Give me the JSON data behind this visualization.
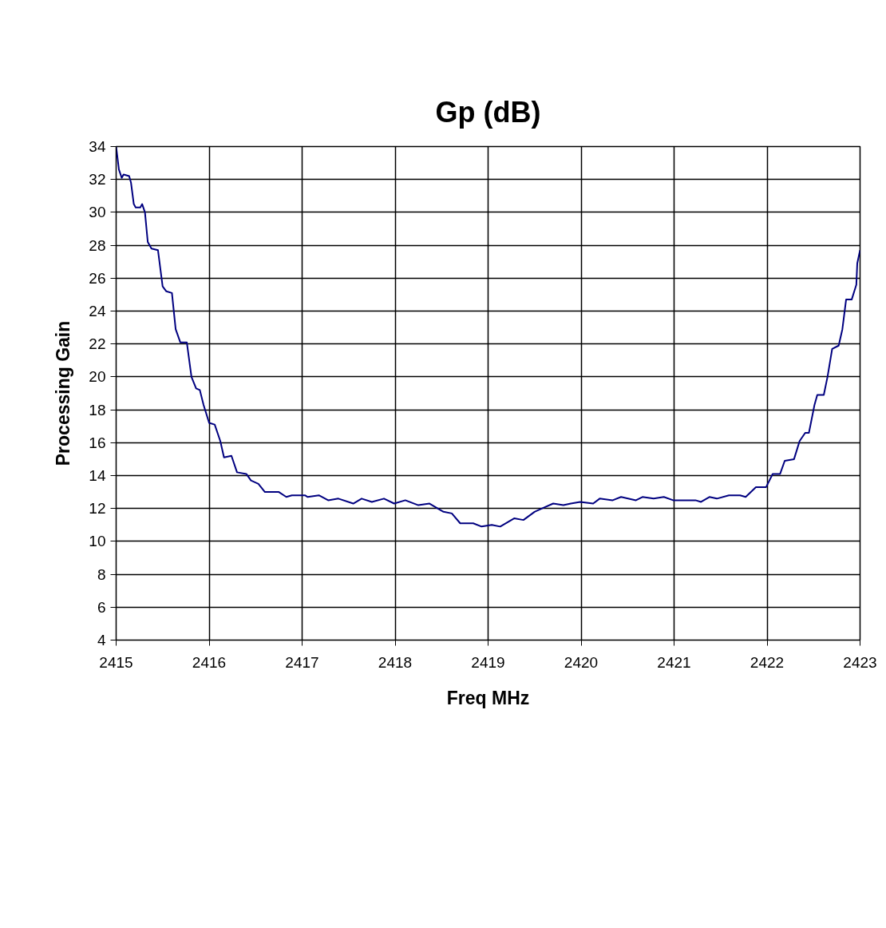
{
  "chart_data": {
    "type": "line",
    "title": "Gp (dB)",
    "xlabel": "Freq MHz",
    "ylabel": "Processing Gain",
    "xlim": [
      2415,
      2423
    ],
    "xticks": [
      2415,
      2416,
      2417,
      2418,
      2419,
      2420,
      2421,
      2422,
      2423
    ],
    "ylim": [
      4,
      34
    ],
    "yticks": [
      4,
      6,
      8,
      10,
      12,
      14,
      16,
      18,
      20,
      22,
      24,
      26,
      28,
      30,
      32,
      34
    ],
    "grid": true,
    "marker": "none",
    "line_style": "solid",
    "series": [
      {
        "color": "#000080",
        "x": [
          2415.0,
          2415.03,
          2415.06,
          2415.08,
          2415.14,
          2415.16,
          2415.19,
          2415.21,
          2415.26,
          2415.28,
          2415.31,
          2415.34,
          2415.38,
          2415.45,
          2415.5,
          2415.54,
          2415.6,
          2415.64,
          2415.69,
          2415.76,
          2415.81,
          2415.86,
          2415.9,
          2415.94,
          2416.0,
          2416.06,
          2416.12,
          2416.16,
          2416.24,
          2416.3,
          2416.4,
          2416.45,
          2416.53,
          2416.6,
          2416.75,
          2416.83,
          2416.89,
          2417.03,
          2417.06,
          2417.18,
          2417.28,
          2417.39,
          2417.55,
          2417.64,
          2417.75,
          2417.88,
          2417.99,
          2418.11,
          2418.25,
          2418.37,
          2418.52,
          2418.61,
          2418.7,
          2418.84,
          2418.93,
          2419.04,
          2419.13,
          2419.28,
          2419.38,
          2419.5,
          2419.58,
          2419.7,
          2419.81,
          2419.89,
          2419.99,
          2420.13,
          2420.2,
          2420.34,
          2420.43,
          2420.59,
          2420.66,
          2420.78,
          2420.89,
          2420.99,
          2421.23,
          2421.29,
          2421.38,
          2421.46,
          2421.59,
          2421.71,
          2421.77,
          2421.88,
          2421.99,
          2422.06,
          2422.14,
          2422.19,
          2422.29,
          2422.35,
          2422.41,
          2422.45,
          2422.51,
          2422.54,
          2422.61,
          2422.65,
          2422.7,
          2422.77,
          2422.81,
          2422.85,
          2422.91,
          2422.96,
          2422.97,
          2423.0
        ],
        "values": [
          34.0,
          32.6,
          32.1,
          32.3,
          32.2,
          31.8,
          30.5,
          30.3,
          30.3,
          30.5,
          30.0,
          28.2,
          27.8,
          27.7,
          25.5,
          25.2,
          25.1,
          22.9,
          22.1,
          22.1,
          20.0,
          19.3,
          19.2,
          18.3,
          17.2,
          17.1,
          16.1,
          15.1,
          15.2,
          14.2,
          14.1,
          13.7,
          13.5,
          13.0,
          13.0,
          12.7,
          12.8,
          12.8,
          12.7,
          12.8,
          12.5,
          12.6,
          12.3,
          12.6,
          12.4,
          12.6,
          12.3,
          12.5,
          12.2,
          12.3,
          11.8,
          11.7,
          11.1,
          11.1,
          10.9,
          11.0,
          10.9,
          11.4,
          11.3,
          11.8,
          12.0,
          12.3,
          12.2,
          12.3,
          12.4,
          12.3,
          12.6,
          12.5,
          12.7,
          12.5,
          12.7,
          12.6,
          12.7,
          12.5,
          12.5,
          12.4,
          12.7,
          12.6,
          12.8,
          12.8,
          12.7,
          13.3,
          13.3,
          14.1,
          14.1,
          14.9,
          15.0,
          16.1,
          16.6,
          16.6,
          18.3,
          18.9,
          18.9,
          20.0,
          21.7,
          21.9,
          22.9,
          24.7,
          24.7,
          25.6,
          26.9,
          27.7
        ]
      }
    ]
  }
}
